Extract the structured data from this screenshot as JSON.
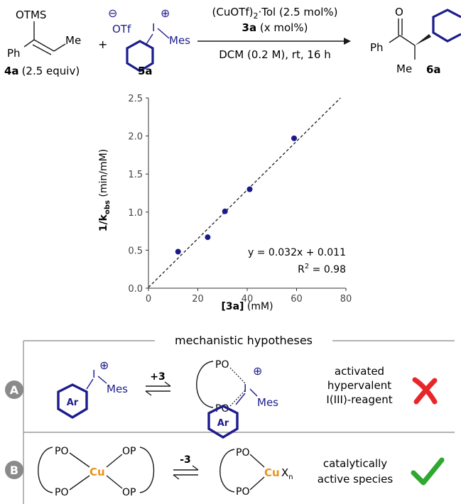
{
  "scheme": {
    "reactant1": {
      "group": "OTMS",
      "ph": "Ph",
      "me": "Me",
      "label_bold": "4a",
      "label_equiv": "(2.5 equiv)"
    },
    "plus": "+",
    "reactant2": {
      "neg": "⊖",
      "otf": "OTf",
      "iodine": "I",
      "pos": "⊕",
      "mes": "Mes",
      "label_bold": "5a"
    },
    "conditions": {
      "catalyst": "(CuOTf)",
      "catalyst_sub": "2",
      "catalyst_tail": "·Tol (2.5 mol%)",
      "ligand_bold": "3a",
      "ligand_rest": " (x mol%)",
      "solvent": "DCM (0.2 M), rt, 16 h"
    },
    "product": {
      "o": "O",
      "ph": "Ph",
      "me": "Me",
      "label_bold": "6a"
    }
  },
  "chart_data": {
    "type": "scatter",
    "x": [
      12,
      24,
      31,
      41,
      59
    ],
    "y": [
      0.48,
      0.67,
      1.01,
      1.3,
      1.97
    ],
    "fit": {
      "slope": 0.032,
      "intercept": 0.011
    },
    "xlim": [
      0,
      80
    ],
    "ylim": [
      0,
      2.5
    ],
    "xticks": [
      0,
      20,
      40,
      60,
      80
    ],
    "yticks": [
      0.0,
      0.5,
      1.0,
      1.5,
      2.0,
      2.5
    ],
    "xlabel_bold": "[3a]",
    "xlabel_unit": " (mM)",
    "ylabel_bold_main": "1/k",
    "ylabel_bold_sub": "obs",
    "ylabel_unit": " (min/mM)",
    "equation": "y = 0.032x + 0.011",
    "r2_label": "R",
    "r2_sup": "2",
    "r2_value": " = 0.98",
    "marker_color": "#1a1a8c",
    "fit_line_style": "dashed"
  },
  "mechanism": {
    "title": "mechanistic hypotheses",
    "A": {
      "letter": "A",
      "ar": "Ar",
      "iodine": "I",
      "pos": "⊕",
      "mes": "Mes",
      "reagent": "+3",
      "po1": "PO",
      "po2": "PO",
      "desc": [
        "activated",
        "hypervalent",
        "I(III)-reagent"
      ],
      "verdict": "cross",
      "verdict_color": "#e8262a"
    },
    "B": {
      "letter": "B",
      "po_left1": "PO",
      "po_left2": "PO",
      "cu": "Cu",
      "op1": "OP",
      "op2": "OP",
      "reagent": "-3",
      "po_right1": "PO",
      "po_right2": "PO",
      "cu2": "Cu",
      "x": "X",
      "x_sub": "n",
      "desc": [
        "catalytically",
        "active species"
      ],
      "verdict": "check",
      "verdict_color": "#2ea82e"
    },
    "colors": {
      "navy": "#1c1c8c",
      "copper": "#e8921a",
      "frame": "#9a9a9a",
      "badge": "#8a8a8a"
    }
  }
}
